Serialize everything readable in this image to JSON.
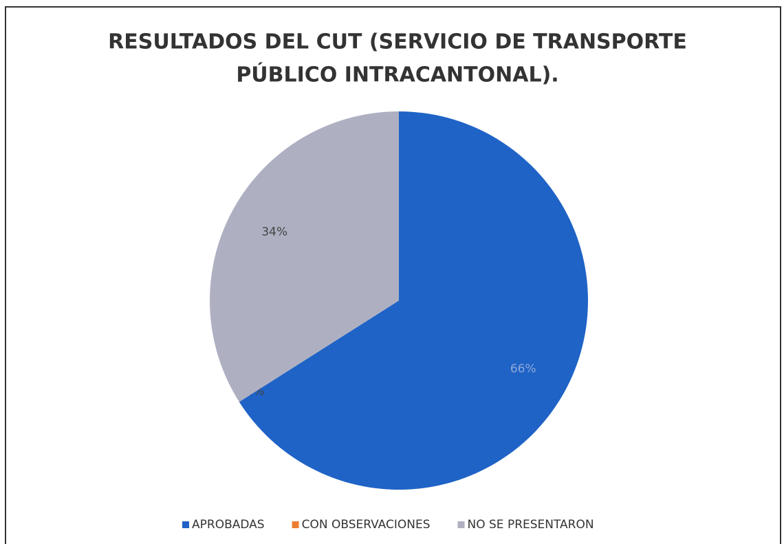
{
  "chart_data": {
    "type": "pie",
    "title": [
      "RESULTADOS DEL CUT (SERVICIO DE TRANSPORTE",
      "PÚBLICO INTRACANTONAL)."
    ],
    "categories": [
      "APROBADAS",
      "CON OBSERVACIONES",
      "NO SE PRESENTARON"
    ],
    "values": [
      66,
      0,
      34
    ],
    "value_labels": [
      "66%",
      "0%",
      "34%"
    ],
    "colors": [
      "#1f63c6",
      "#ed7d31",
      "#aeb0c2"
    ],
    "legend": "bottom"
  }
}
